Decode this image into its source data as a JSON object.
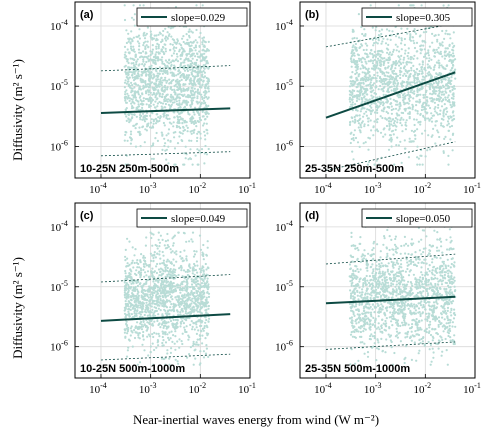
{
  "figure": {
    "ylabel": "Diffusivity (m² s⁻¹)",
    "xlabel": "Near-inertial waves energy from wind (W m⁻²)",
    "colors": {
      "scatter": "#b8dcd6",
      "fit": "#0d4a43",
      "bound": "#0d4a43",
      "grid": "#d8d8d8"
    }
  },
  "chart_data": [
    {
      "type": "scatter",
      "panel": "(a)",
      "region": "10-25N 250m-500m",
      "legend": "slope=0.029",
      "xscale": "log",
      "yscale": "log",
      "xlim": [
        3e-05,
        0.1
      ],
      "ylim": [
        3e-07,
        0.00025
      ],
      "xticks": [
        0.0001,
        0.001,
        0.01,
        0.1
      ],
      "yticks": [
        1e-06,
        1e-05,
        0.0001
      ],
      "scatter_extent": {
        "x": [
          0.0003,
          0.015
        ],
        "y": [
          5e-07,
          0.00022
        ]
      },
      "fit": {
        "x": [
          0.0001,
          0.04
        ],
        "y": [
          3.6e-06,
          4.3e-06
        ]
      },
      "upper_bound": {
        "x": [
          0.0001,
          0.04
        ],
        "y": [
          1.8e-05,
          2.2e-05
        ]
      },
      "lower_bound": {
        "x": [
          0.0001,
          0.04
        ],
        "y": [
          7e-07,
          8.2e-07
        ]
      }
    },
    {
      "type": "scatter",
      "panel": "(b)",
      "region": "25-35N 250m-500m",
      "legend": "slope=0.305",
      "xscale": "log",
      "yscale": "log",
      "xlim": [
        3e-05,
        0.1
      ],
      "ylim": [
        3e-07,
        0.00025
      ],
      "xticks": [
        0.0001,
        0.001,
        0.01,
        0.1
      ],
      "yticks": [
        1e-06,
        1e-05,
        0.0001
      ],
      "scatter_extent": {
        "x": [
          0.0003,
          0.04
        ],
        "y": [
          5e-07,
          0.00022
        ]
      },
      "fit": {
        "x": [
          0.0001,
          0.04
        ],
        "y": [
          3e-06,
          1.7e-05
        ]
      },
      "upper_bound": {
        "x": [
          0.0001,
          0.04
        ],
        "y": [
          4.5e-05,
          0.00011
        ]
      },
      "lower_bound": {
        "x": [
          0.0001,
          0.04
        ],
        "y": [
          4e-07,
          1.2e-06
        ]
      }
    },
    {
      "type": "scatter",
      "panel": "(c)",
      "region": "10-25N 500m-1000m",
      "legend": "slope=0.049",
      "xscale": "log",
      "yscale": "log",
      "xlim": [
        3e-05,
        0.1
      ],
      "ylim": [
        3e-07,
        0.00025
      ],
      "xticks": [
        0.0001,
        0.001,
        0.01,
        0.1
      ],
      "yticks": [
        1e-06,
        1e-05,
        0.0001
      ],
      "scatter_extent": {
        "x": [
          0.0003,
          0.015
        ],
        "y": [
          5e-07,
          8e-05
        ]
      },
      "fit": {
        "x": [
          0.0001,
          0.04
        ],
        "y": [
          2.7e-06,
          3.5e-06
        ]
      },
      "upper_bound": {
        "x": [
          0.0001,
          0.04
        ],
        "y": [
          1.2e-05,
          1.6e-05
        ]
      },
      "lower_bound": {
        "x": [
          0.0001,
          0.04
        ],
        "y": [
          6e-07,
          7.5e-07
        ]
      }
    },
    {
      "type": "scatter",
      "panel": "(d)",
      "region": "25-35N 500m-1000m",
      "legend": "slope=0.050",
      "xscale": "log",
      "yscale": "log",
      "xlim": [
        3e-05,
        0.1
      ],
      "ylim": [
        3e-07,
        0.00025
      ],
      "xticks": [
        0.0001,
        0.001,
        0.01,
        0.1
      ],
      "yticks": [
        1e-06,
        1e-05,
        0.0001
      ],
      "scatter_extent": {
        "x": [
          0.0003,
          0.04
        ],
        "y": [
          5e-07,
          0.0001
        ]
      },
      "fit": {
        "x": [
          0.0001,
          0.04
        ],
        "y": [
          5.3e-06,
          6.8e-06
        ]
      },
      "upper_bound": {
        "x": [
          0.0001,
          0.04
        ],
        "y": [
          2.4e-05,
          3.5e-05
        ]
      },
      "lower_bound": {
        "x": [
          0.0001,
          0.04
        ],
        "y": [
          9e-07,
          1.2e-06
        ]
      }
    }
  ]
}
